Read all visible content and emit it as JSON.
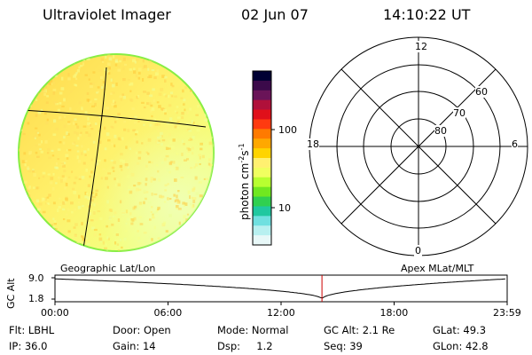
{
  "header": {
    "title": "Ultraviolet Imager",
    "date": "02 Jun 07",
    "time": "14:10:22 UT"
  },
  "colorbar": {
    "unit_label": "photon cm",
    "unit_sup1": "-2",
    "unit_mid": "s",
    "unit_sup2": "-1",
    "tick_100": "100",
    "tick_10": "10",
    "colors": [
      "#000033",
      "#3b0a4a",
      "#6a1458",
      "#b0103a",
      "#e0101a",
      "#ff3a10",
      "#ff7a00",
      "#ffa800",
      "#ffd400",
      "#fff070",
      "#f0ff60",
      "#b8ff30",
      "#70e820",
      "#30d050",
      "#20c8a0",
      "#70e0e0",
      "#b8f0f0",
      "#e8f8f8"
    ]
  },
  "polar": {
    "label_12": "12",
    "label_18": "18",
    "label_6": "6",
    "label_0": "0",
    "label_60": "60",
    "label_70": "70",
    "label_80": "80"
  },
  "timeline": {
    "left_label": "Geographic Lat/Lon",
    "right_label": "Apex  MLat/MLT",
    "axis_title": "GC Alt",
    "y_top": "9.0",
    "y_bottom": "1.8",
    "x_ticks": [
      "00:00",
      "06:00",
      "12:00",
      "18:00",
      "23:59"
    ],
    "marker_time_hours": 14.17,
    "min_time_hours": 14.17
  },
  "footer": {
    "flt": "Flt: LBHL",
    "door": "Door: Open",
    "mode": "Mode: Normal",
    "gcalt": "GC Alt: 2.1 Re",
    "glat": "GLat:  49.3",
    "ip": "IP: 36.0",
    "gain": "Gain: 14",
    "dsp": "Dsp:     1.2",
    "seq": "Seq: 39",
    "glon": "GLon:  42.8"
  }
}
